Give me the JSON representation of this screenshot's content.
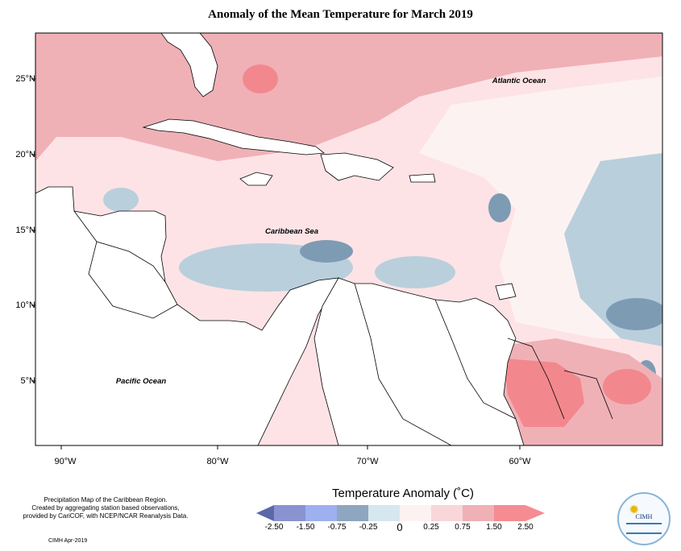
{
  "title": "Anomaly of the Mean Temperature for March 2019",
  "map": {
    "region": "Caribbean",
    "lat_ticks": [
      "25°N",
      "20°N",
      "15°N",
      "10°N",
      "5°N"
    ],
    "lon_ticks": [
      "90°W",
      "80°W",
      "70°W",
      "60°W"
    ],
    "places": {
      "atlantic": "Atlantic Ocean",
      "caribbean": "Caribbean Sea",
      "pacific": "Pacific Ocean"
    },
    "colors": {
      "ocean_bg": "#fde3e6",
      "band_0_025": "#fdf2f2",
      "band_025_075": "#f8d2d7",
      "band_075_150": "#efb1b6",
      "band_150_250": "#f2888e",
      "band_neg_025_0": "#d6e6ec",
      "band_neg_075_025": "#b9cfdc",
      "band_neg_150_075": "#7e9bb4",
      "land": "#ffffff",
      "coast": "#000000"
    }
  },
  "legend": {
    "title": "Temperature Anomaly (˚C)",
    "ticks": [
      "-2.50",
      "-1.50",
      "-0.75",
      "-0.25",
      "0",
      "0.25",
      "0.75",
      "1.50",
      "2.50"
    ],
    "colors": [
      "#5c69a8",
      "#8a93cf",
      "#9fb0f0",
      "#8ea6bf",
      "#d7e7ee",
      "#fdf2f2",
      "#f8d6da",
      "#efb1b6",
      "#f58c92"
    ]
  },
  "notes": {
    "line1": "Precipitation Map of the Caribbean Region.",
    "line2": "Created by aggregating station based observations,",
    "line3": "provided by CariCOF, with NCEP/NCAR Reanalysis Data.",
    "credit": "CIMH Apr-2019"
  },
  "logo": {
    "text": "CIMH",
    "icon": "sun-icon"
  }
}
